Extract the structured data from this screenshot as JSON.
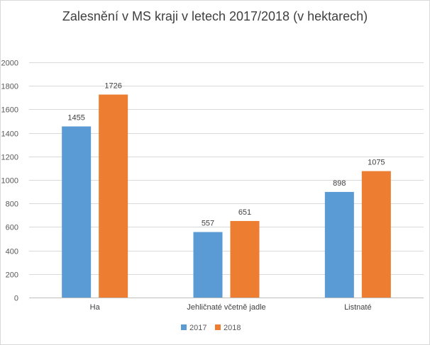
{
  "chart_data": {
    "type": "bar",
    "title": "Zalesnění v MS kraji v letech 2017/2018 (v hektarech)",
    "xlabel": "",
    "ylabel": "",
    "categories": [
      "Ha",
      "Jehličnaté včetně jadle",
      "Listnaté"
    ],
    "series": [
      {
        "name": "2017",
        "values": [
          1455,
          557,
          898
        ],
        "color": "#5b9bd5"
      },
      {
        "name": "2018",
        "values": [
          1726,
          651,
          1075
        ],
        "color": "#ed7d31"
      }
    ],
    "ylim": [
      0,
      2000
    ],
    "yticks": [
      0,
      200,
      400,
      600,
      800,
      1000,
      1200,
      1400,
      1600,
      1800,
      2000
    ],
    "grid": true,
    "legend": "bottom",
    "data_labels": true
  }
}
